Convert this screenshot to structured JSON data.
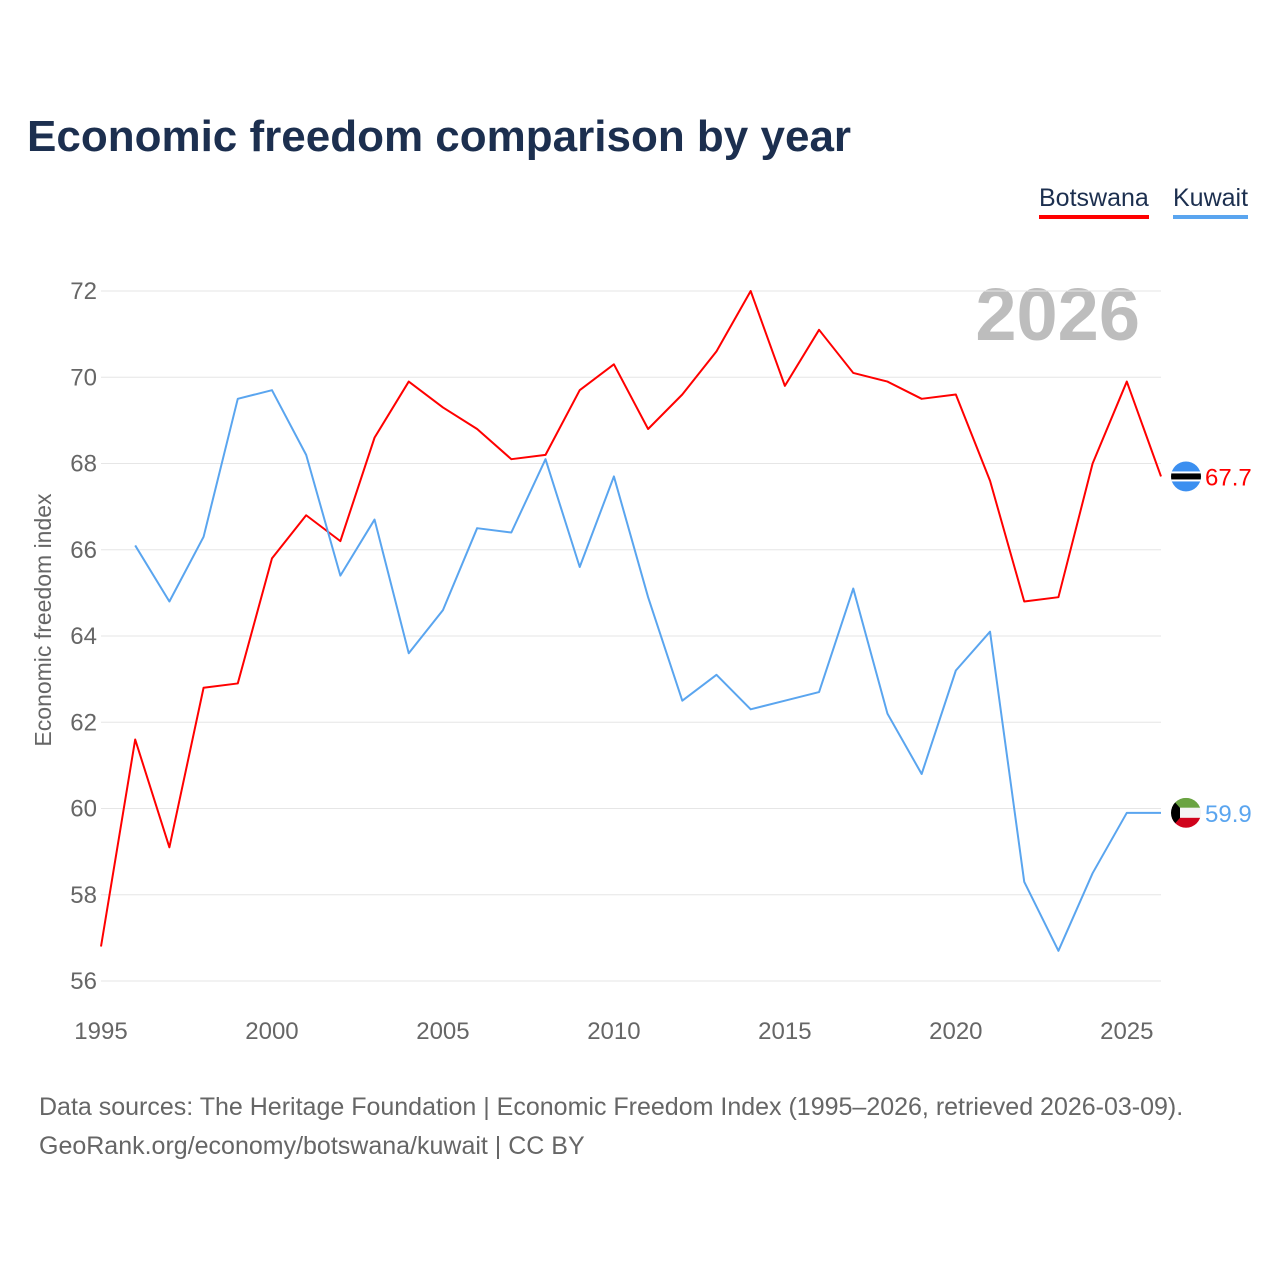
{
  "chart_data": {
    "type": "line",
    "title": "Economic freedom comparison by year",
    "xlabel": "",
    "ylabel": "Economic freedom index",
    "xlim": [
      1995,
      2026
    ],
    "ylim": [
      56,
      72
    ],
    "yticks": [
      56,
      58,
      60,
      62,
      64,
      66,
      68,
      70,
      72
    ],
    "xticks": [
      1995,
      2000,
      2005,
      2010,
      2015,
      2020,
      2025
    ],
    "grid": true,
    "legend_position": "top-right",
    "watermark_year": "2026",
    "series": [
      {
        "name": "Botswana",
        "color": "#ff0000",
        "end_label": "67.7",
        "x": [
          1995,
          1996,
          1997,
          1998,
          1999,
          2000,
          2001,
          2002,
          2003,
          2004,
          2005,
          2006,
          2007,
          2008,
          2009,
          2010,
          2011,
          2012,
          2013,
          2014,
          2015,
          2016,
          2017,
          2018,
          2019,
          2020,
          2021,
          2022,
          2023,
          2024,
          2025,
          2026
        ],
        "values": [
          56.8,
          61.6,
          59.1,
          62.8,
          62.9,
          65.8,
          66.8,
          66.2,
          68.6,
          69.9,
          69.3,
          68.8,
          68.1,
          68.2,
          69.7,
          70.3,
          68.8,
          69.6,
          70.6,
          72.0,
          69.8,
          71.1,
          70.1,
          69.9,
          69.5,
          69.6,
          67.6,
          64.8,
          64.9,
          68.0,
          69.9,
          67.7
        ]
      },
      {
        "name": "Kuwait",
        "color": "#5aa5ef",
        "end_label": "59.9",
        "x": [
          1996,
          1997,
          1998,
          1999,
          2000,
          2001,
          2002,
          2003,
          2004,
          2005,
          2006,
          2007,
          2008,
          2009,
          2010,
          2011,
          2012,
          2013,
          2014,
          2015,
          2016,
          2017,
          2018,
          2019,
          2020,
          2021,
          2022,
          2023,
          2024,
          2025,
          2026
        ],
        "values": [
          66.1,
          64.8,
          66.3,
          69.5,
          69.7,
          68.2,
          65.4,
          66.7,
          63.6,
          64.6,
          66.5,
          66.4,
          68.1,
          65.6,
          67.7,
          64.9,
          62.5,
          63.1,
          62.3,
          62.5,
          62.7,
          65.1,
          62.2,
          60.8,
          63.2,
          64.1,
          58.3,
          56.7,
          58.5,
          59.9,
          59.9
        ]
      }
    ]
  },
  "source_line1": "Data sources: The Heritage Foundation | Economic Freedom Index (1995–2026, retrieved 2026-03-09).",
  "source_line2": "GeoRank.org/economy/botswana/kuwait | CC BY"
}
